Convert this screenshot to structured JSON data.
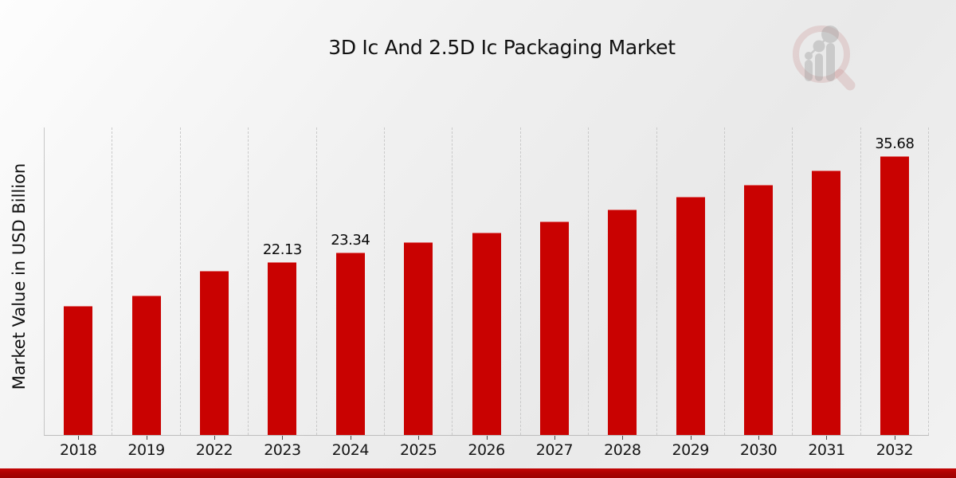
{
  "header": {
    "title": "3D Ic And 2.5D Ic Packaging Market"
  },
  "axes": {
    "y_axis_label": "Market Value in USD Billion"
  },
  "logo": {
    "ring_color": "#c98f8f",
    "bars_color": "#9a9a9a"
  },
  "footer": {
    "accent_color": "#b00303"
  },
  "chart_data": {
    "type": "bar",
    "title": "3D Ic And 2.5D Ic Packaging Market",
    "xlabel": "",
    "ylabel": "Market Value in USD Billion",
    "categories": [
      "2018",
      "2019",
      "2022",
      "2023",
      "2024",
      "2025",
      "2026",
      "2027",
      "2028",
      "2029",
      "2030",
      "2031",
      "2032"
    ],
    "values": [
      16.5,
      17.9,
      21.0,
      22.13,
      23.34,
      24.7,
      25.9,
      27.4,
      28.9,
      30.5,
      32.1,
      33.9,
      35.68
    ],
    "data_labels": [
      "",
      "",
      "",
      "22.13",
      "23.34",
      "",
      "",
      "",
      "",
      "",
      "",
      "",
      "35.68"
    ],
    "bar_color": "#c90201",
    "label_color": "#0a0a0a",
    "ylim": [
      0,
      39.4
    ],
    "grid": "vertical-dashed-only",
    "legend": "none"
  }
}
